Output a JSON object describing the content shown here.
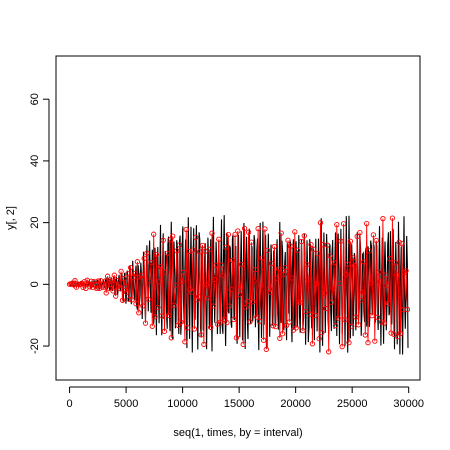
{
  "chart_data": {
    "type": "line",
    "title": "",
    "xlabel": "seq(1, times, by = interval)",
    "ylabel": "y[, 2]",
    "xlim": [
      -1200,
      31000
    ],
    "ylim": [
      -31,
      74
    ],
    "x_ticks": [
      0,
      5000,
      10000,
      15000,
      20000,
      25000,
      30000
    ],
    "y_ticks": [
      -20,
      0,
      20,
      40,
      60
    ],
    "legend": "none",
    "grid": false,
    "series": [
      {
        "style": "line",
        "color": "#000000",
        "x_start": 1,
        "x_step": 60,
        "points": 500,
        "envelope": [
          {
            "x": 0,
            "amp": 0.4
          },
          {
            "x": 2500,
            "amp": 1.5
          },
          {
            "x": 4000,
            "amp": 3.5
          },
          {
            "x": 5500,
            "amp": 8
          },
          {
            "x": 7000,
            "amp": 16
          },
          {
            "x": 8500,
            "amp": 22
          },
          {
            "x": 10000,
            "amp": 23
          },
          {
            "x": 30000,
            "amp": 23
          }
        ]
      },
      {
        "style": "line+points",
        "color": "#ff0000",
        "x_start": 1,
        "x_step": 120,
        "points": 250,
        "envelope": [
          {
            "x": 0,
            "amp": 0.8
          },
          {
            "x": 2500,
            "amp": 1.8
          },
          {
            "x": 4000,
            "amp": 3.5
          },
          {
            "x": 5500,
            "amp": 8
          },
          {
            "x": 7000,
            "amp": 16
          },
          {
            "x": 8500,
            "amp": 21
          },
          {
            "x": 10000,
            "amp": 22
          },
          {
            "x": 30000,
            "amp": 22
          }
        ]
      }
    ]
  }
}
